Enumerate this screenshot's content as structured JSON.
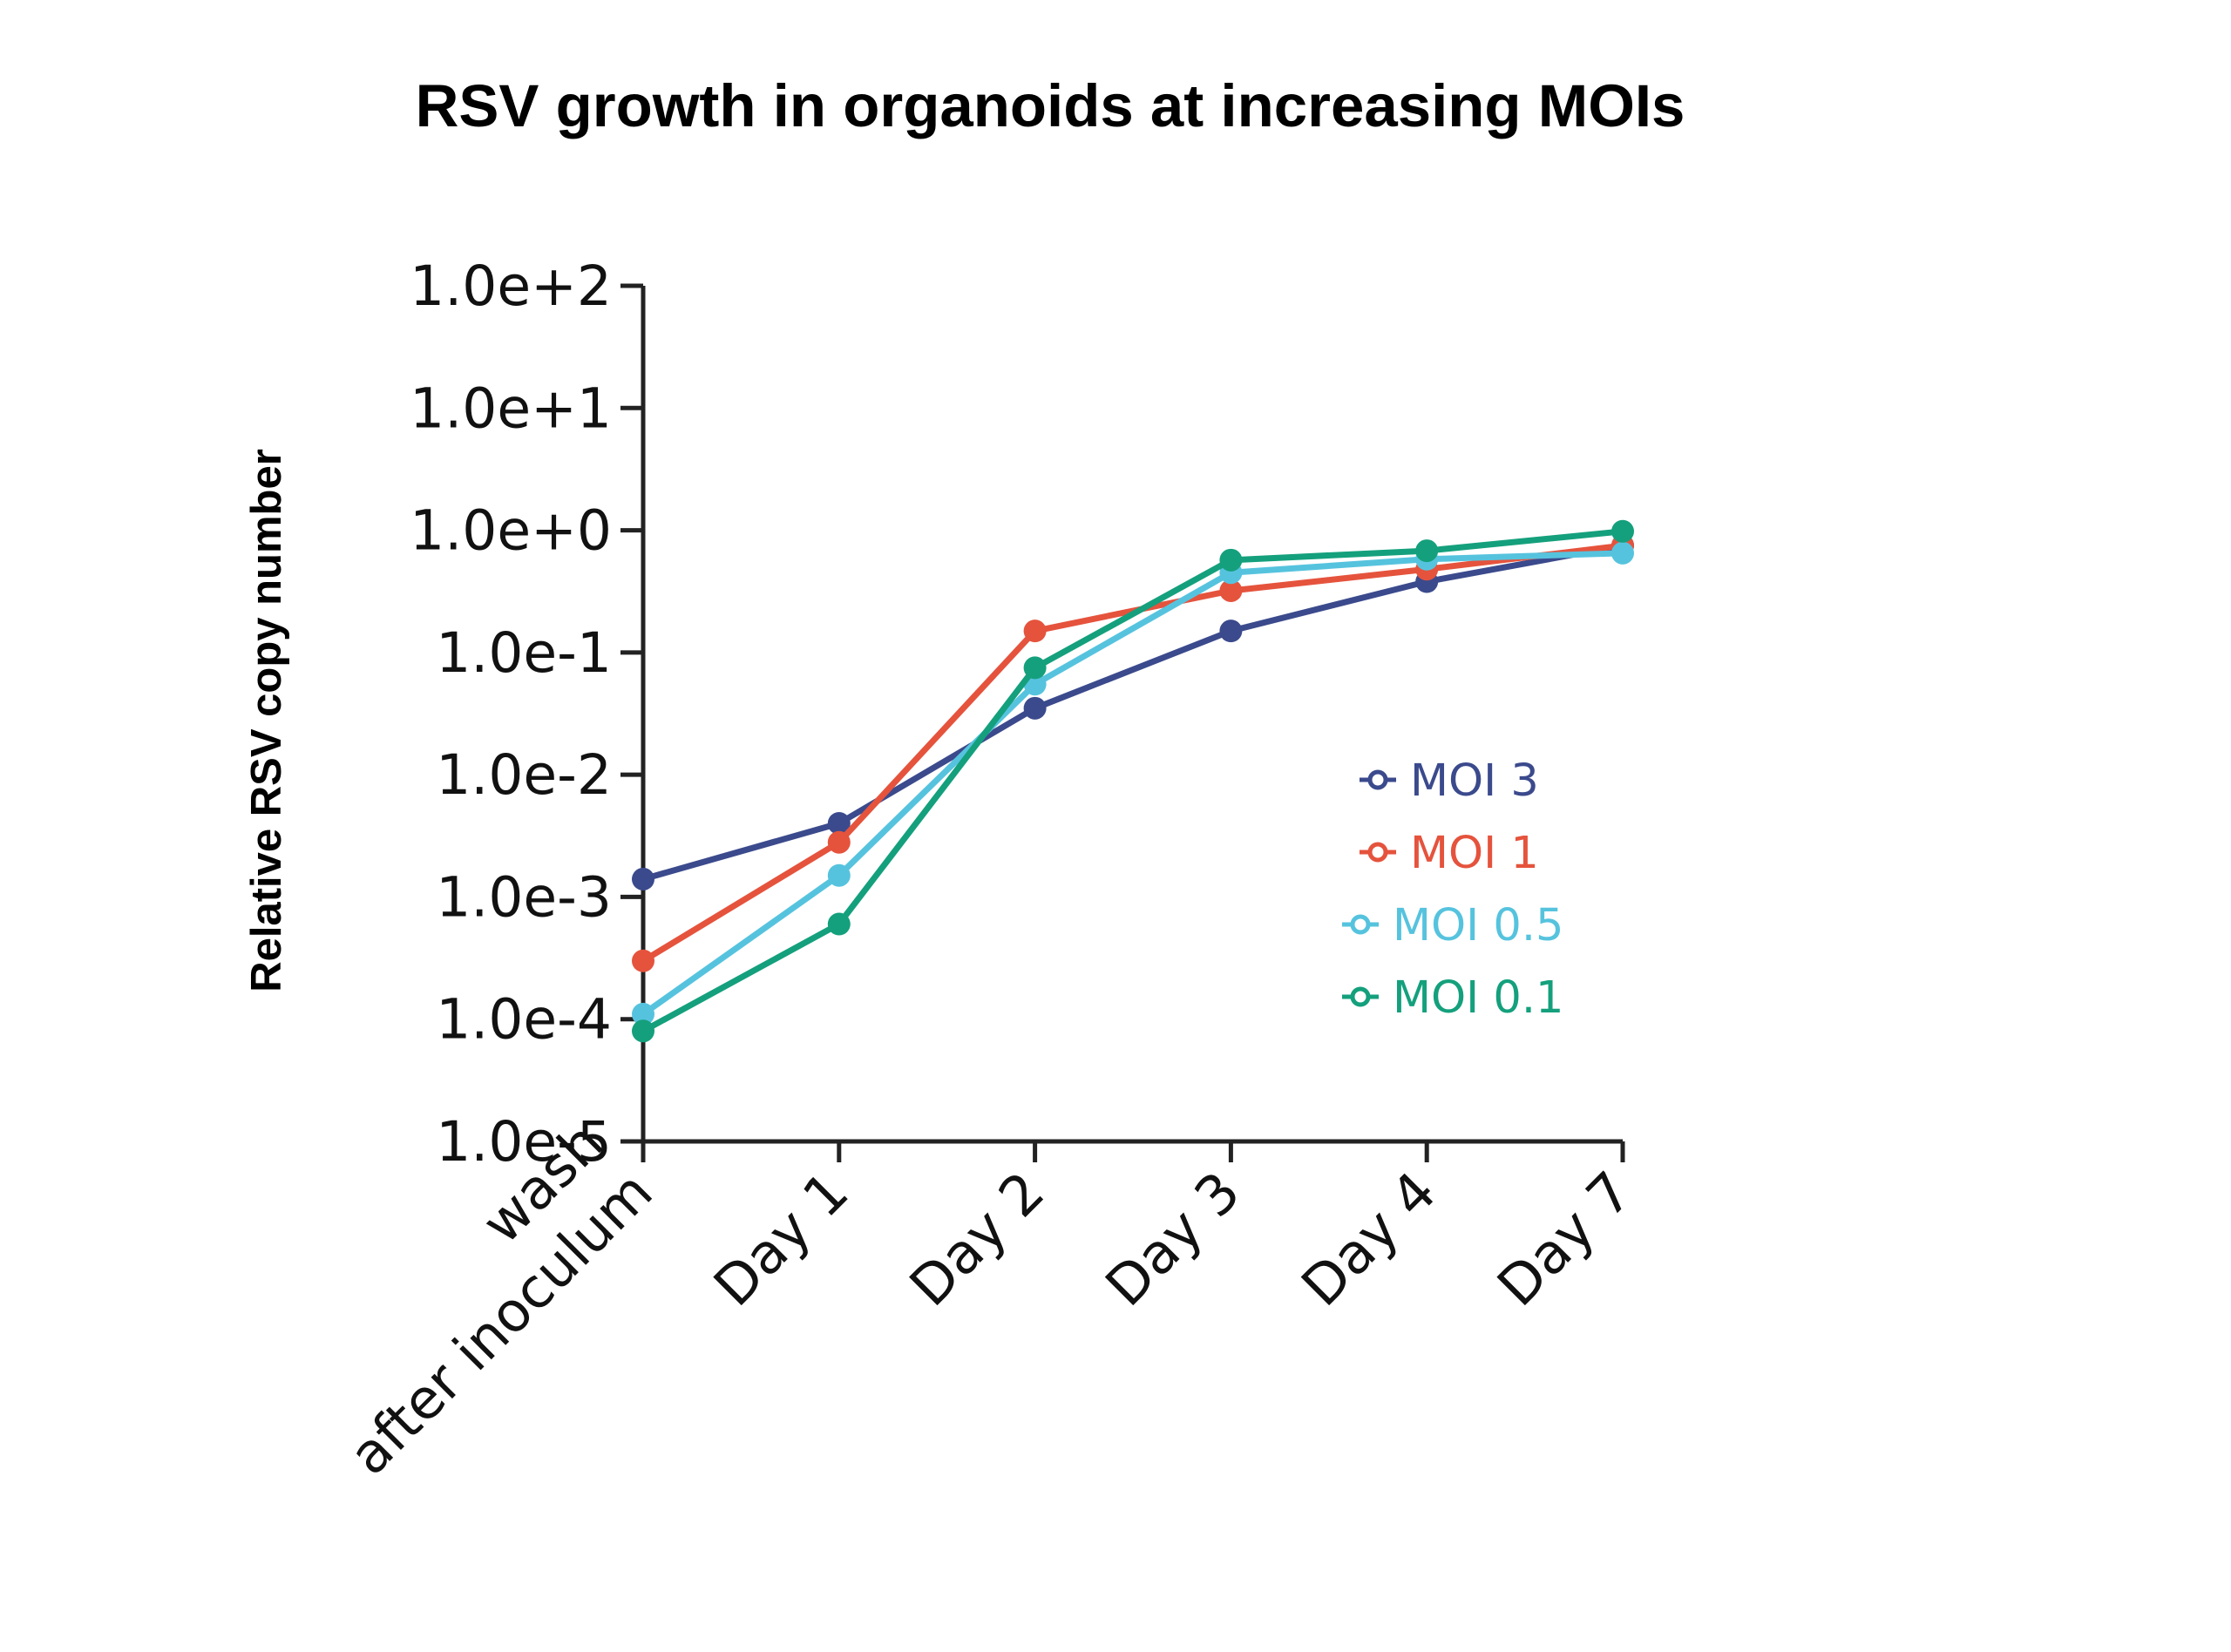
{
  "chart_data": {
    "type": "line",
    "title": "RSV growth in organoids at increasing MOIs",
    "ylabel": "Relative RSV copy number",
    "xlabel": "",
    "yscale": "log",
    "ylim": [
      1e-05,
      100
    ],
    "y_tick_labels": [
      "1.0e-5",
      "1.0e-4",
      "1.0e-3",
      "1.0e-2",
      "1.0e-1",
      "1.0e+0",
      "1.0e+1",
      "1.0e+2"
    ],
    "y_tick_values": [
      1e-05,
      0.0001,
      0.001,
      0.01,
      0.1,
      1,
      10,
      100
    ],
    "categories": [
      "wash after inoculum",
      "Day 1",
      "Day 2",
      "Day 3",
      "Day 4",
      "Day 7"
    ],
    "category_lines": [
      [
        "wash",
        "after inoculum"
      ],
      [
        "Day 1"
      ],
      [
        "Day 2"
      ],
      [
        "Day 3"
      ],
      [
        "Day 4"
      ],
      [
        "Day 7"
      ]
    ],
    "grid": false,
    "legend_position": "right, inside",
    "series": [
      {
        "name": "MOI 3",
        "color": "#3b4a8c",
        "values": [
          0.0014,
          0.004,
          0.035,
          0.15,
          0.38,
          0.75
        ]
      },
      {
        "name": "MOI 1",
        "color": "#e5533d",
        "values": [
          0.0003,
          0.0028,
          0.15,
          0.32,
          0.48,
          0.75
        ]
      },
      {
        "name": "MOI 0.5",
        "color": "#56c3de",
        "values": [
          0.00011,
          0.0015,
          0.055,
          0.45,
          0.58,
          0.65
        ]
      },
      {
        "name": "MOI 0.1",
        "color": "#14a07c",
        "values": [
          8e-05,
          0.0006,
          0.075,
          0.57,
          0.68,
          0.98
        ]
      }
    ]
  }
}
